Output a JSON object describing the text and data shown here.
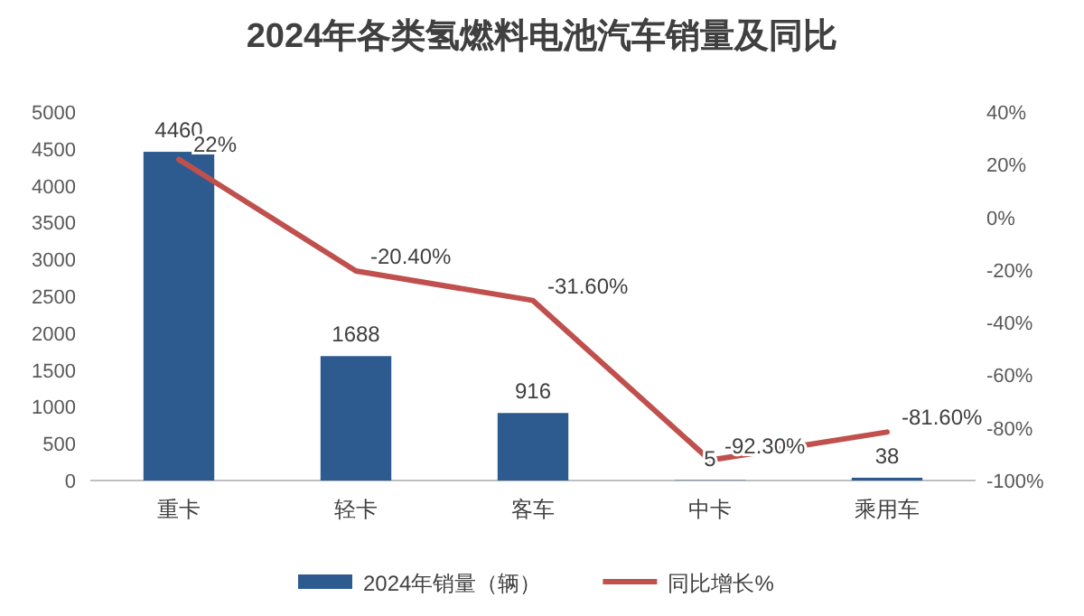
{
  "chart_data": {
    "type": "bar",
    "title": "2024年各类氢燃料电池汽车销量及同比",
    "categories": [
      "重卡",
      "轻卡",
      "客车",
      "中卡",
      "乘用车"
    ],
    "series": [
      {
        "name": "2024年销量（辆）",
        "color": "#2e5b8f",
        "values": [
          4460,
          1688,
          916,
          5,
          38
        ]
      },
      {
        "name": "同比增长%",
        "type": "line",
        "axis": "y2",
        "color": "#c0504d",
        "values": [
          22,
          -20.4,
          -31.6,
          -92.3,
          -81.6
        ],
        "value_labels": [
          "22%",
          "-20.40%",
          "-31.60%",
          "-92.30%",
          "-81.60%"
        ]
      }
    ],
    "ylim": [
      0,
      5000
    ],
    "yticks": [
      0,
      500,
      1000,
      1500,
      2000,
      2500,
      3000,
      3500,
      4000,
      4500,
      5000
    ],
    "y2lim": [
      -100,
      40
    ],
    "y2ticks": [
      {
        "value": -100,
        "label": "-100%"
      },
      {
        "value": -80,
        "label": "-80%"
      },
      {
        "value": -60,
        "label": "-60%"
      },
      {
        "value": -40,
        "label": "-40%"
      },
      {
        "value": -20,
        "label": "-20%"
      },
      {
        "value": 0,
        "label": "0%"
      },
      {
        "value": 20,
        "label": "20%"
      },
      {
        "value": 40,
        "label": "40%"
      }
    ],
    "data_labels": true,
    "legend": "bottom",
    "grid": false,
    "marker": "none",
    "line_style": "solid"
  }
}
